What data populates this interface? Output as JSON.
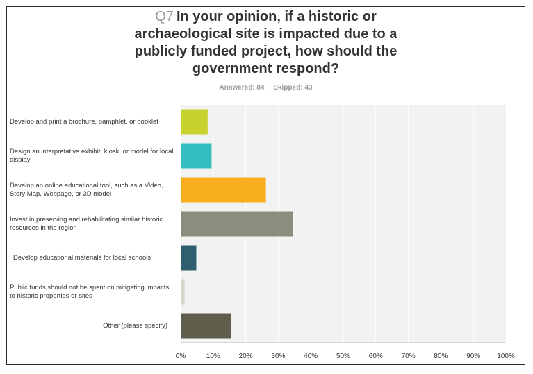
{
  "question": {
    "number": "Q7",
    "text": "In your opinion, if a historic or archaeological site is impacted due to a publicly funded project, how should the government respond?",
    "line1": "In your opinion, if a historic or",
    "line2": "archaeological site is impacted due to a",
    "line3": "publicly funded project, how should the",
    "line4": "government respond?"
  },
  "stats": {
    "answered": "Answered: 84",
    "skipped": "Skipped: 43"
  },
  "colors": {
    "plot_background": "#f2f2f2",
    "gridline": "#ffffff",
    "axis": "#bbbbbb"
  },
  "chart_data": {
    "type": "bar",
    "orientation": "horizontal",
    "xlim": [
      0,
      100
    ],
    "x_unit": "%",
    "ticks": [
      "0%",
      "10%",
      "20%",
      "30%",
      "40%",
      "50%",
      "60%",
      "70%",
      "80%",
      "90%",
      "100%"
    ],
    "grid": true,
    "categories": [
      "Develop and print a brochure, pamphlet, or booklet",
      "Design an interpretative exhibit, kiosk, or model for local display",
      "Develop an online educational tool, such as a Video, Story Map, Webpage, or 3D model",
      "Invest in preserving and rehabilitating similar historic resources in the region",
      "Develop educational materials for local schools",
      "Public funds should not be spent on mitigating impacts to historic properties or sites",
      "Other (please specify)"
    ],
    "values": [
      8.3,
      9.5,
      26.2,
      34.5,
      4.8,
      1.2,
      15.5
    ],
    "bar_colors": [
      "#c8d22e",
      "#35bec1",
      "#f6ae1e",
      "#8d8d7f",
      "#2f5f6e",
      "#d6d6cc",
      "#5f5d4c"
    ]
  }
}
